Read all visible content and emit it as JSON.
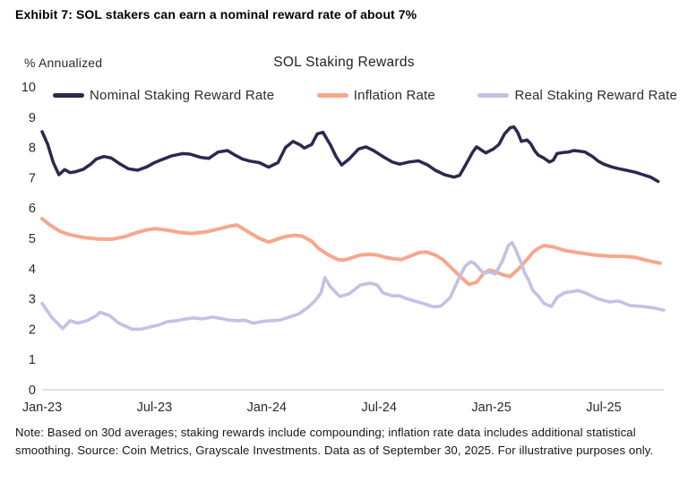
{
  "exhibit_title": "Exhibit 7: SOL stakers can earn a nominal reward rate of about 7%",
  "chart": {
    "title": "SOL Staking Rewards",
    "y_axis_unit_label": "% Annualized",
    "colors": {
      "nominal": "#2e2750",
      "inflation": "#f6a78c",
      "real": "#c5c0e5",
      "axis_line": "#d9d9d9",
      "tick_text": "#2b2b2b"
    }
  },
  "note": "Note: Based on 30d averages; staking rewards include compounding; inflation rate data includes additional statistical smoothing. Source: Coin Metrics, Grayscale Investments. Data as of September 30, 2025. For illustrative purposes only.",
  "chart_data": {
    "type": "line",
    "title": "SOL Staking Rewards",
    "xlabel": "",
    "ylabel": "% Annualized",
    "ylim": [
      0,
      10
    ],
    "grid": false,
    "legend_position": "top",
    "x_unit": "months_since_Jan_2023",
    "x_range": [
      "Jan-2023",
      "Sep-2025"
    ],
    "y_ticks": [
      0,
      1,
      2,
      3,
      4,
      5,
      6,
      7,
      8,
      9,
      10
    ],
    "x_tick_positions": [
      0,
      6,
      12,
      18,
      24,
      30
    ],
    "x_tick_labels": [
      "Jan-23",
      "Jul-23",
      "Jan-24",
      "Jul-24",
      "Jan-25",
      "Jul-25"
    ],
    "series": [
      {
        "name": "Nominal Staking Reward Rate",
        "color": "#2e2750",
        "stroke_width": 3.5,
        "points": [
          [
            0,
            8.52
          ],
          [
            0.3,
            8.1
          ],
          [
            0.6,
            7.5
          ],
          [
            0.9,
            7.1
          ],
          [
            1.2,
            7.27
          ],
          [
            1.5,
            7.17
          ],
          [
            1.8,
            7.2
          ],
          [
            2.2,
            7.28
          ],
          [
            2.6,
            7.45
          ],
          [
            2.9,
            7.62
          ],
          [
            3.3,
            7.7
          ],
          [
            3.7,
            7.65
          ],
          [
            4.1,
            7.48
          ],
          [
            4.6,
            7.3
          ],
          [
            5.1,
            7.25
          ],
          [
            5.6,
            7.36
          ],
          [
            6,
            7.5
          ],
          [
            6.4,
            7.6
          ],
          [
            6.9,
            7.72
          ],
          [
            7.5,
            7.8
          ],
          [
            7.9,
            7.78
          ],
          [
            8.5,
            7.67
          ],
          [
            8.9,
            7.64
          ],
          [
            9.4,
            7.85
          ],
          [
            9.9,
            7.9
          ],
          [
            10.3,
            7.75
          ],
          [
            10.7,
            7.62
          ],
          [
            11.1,
            7.55
          ],
          [
            11.6,
            7.5
          ],
          [
            12.1,
            7.35
          ],
          [
            12.6,
            7.5
          ],
          [
            13,
            8.0
          ],
          [
            13.4,
            8.2
          ],
          [
            13.8,
            8.08
          ],
          [
            14,
            7.98
          ],
          [
            14.4,
            8.1
          ],
          [
            14.7,
            8.45
          ],
          [
            15,
            8.5
          ],
          [
            15.4,
            8.08
          ],
          [
            15.7,
            7.7
          ],
          [
            16,
            7.42
          ],
          [
            16.4,
            7.62
          ],
          [
            16.9,
            7.95
          ],
          [
            17.3,
            8.02
          ],
          [
            17.7,
            7.9
          ],
          [
            18.2,
            7.7
          ],
          [
            18.7,
            7.52
          ],
          [
            19.1,
            7.45
          ],
          [
            19.6,
            7.52
          ],
          [
            20.1,
            7.56
          ],
          [
            20.6,
            7.42
          ],
          [
            21,
            7.25
          ],
          [
            21.5,
            7.1
          ],
          [
            22,
            7.02
          ],
          [
            22.3,
            7.08
          ],
          [
            22.6,
            7.4
          ],
          [
            23,
            7.85
          ],
          [
            23.2,
            8.02
          ],
          [
            23.4,
            7.94
          ],
          [
            23.7,
            7.82
          ],
          [
            24.1,
            7.95
          ],
          [
            24.4,
            8.1
          ],
          [
            24.7,
            8.45
          ],
          [
            25,
            8.65
          ],
          [
            25.2,
            8.68
          ],
          [
            25.4,
            8.5
          ],
          [
            25.6,
            8.2
          ],
          [
            25.9,
            8.25
          ],
          [
            26.1,
            8.12
          ],
          [
            26.3,
            7.9
          ],
          [
            26.5,
            7.75
          ],
          [
            26.8,
            7.65
          ],
          [
            27.1,
            7.52
          ],
          [
            27.3,
            7.58
          ],
          [
            27.5,
            7.8
          ],
          [
            27.8,
            7.83
          ],
          [
            28.1,
            7.85
          ],
          [
            28.4,
            7.9
          ],
          [
            28.7,
            7.88
          ],
          [
            29,
            7.85
          ],
          [
            29.4,
            7.7
          ],
          [
            29.7,
            7.55
          ],
          [
            30,
            7.45
          ],
          [
            30.4,
            7.36
          ],
          [
            30.8,
            7.3
          ],
          [
            31.2,
            7.25
          ],
          [
            31.7,
            7.18
          ],
          [
            32.1,
            7.1
          ],
          [
            32.5,
            7.02
          ],
          [
            32.9,
            6.88
          ]
        ]
      },
      {
        "name": "Inflation Rate",
        "color": "#f6a78c",
        "stroke_width": 4,
        "points": [
          [
            0,
            5.65
          ],
          [
            0.4,
            5.45
          ],
          [
            0.9,
            5.25
          ],
          [
            1.3,
            5.15
          ],
          [
            1.8,
            5.08
          ],
          [
            2.3,
            5.02
          ],
          [
            3,
            4.98
          ],
          [
            3.7,
            4.97
          ],
          [
            4.4,
            5.05
          ],
          [
            5,
            5.18
          ],
          [
            5.6,
            5.28
          ],
          [
            6,
            5.32
          ],
          [
            6.6,
            5.28
          ],
          [
            7.3,
            5.2
          ],
          [
            8,
            5.16
          ],
          [
            8.8,
            5.22
          ],
          [
            9.5,
            5.32
          ],
          [
            10,
            5.4
          ],
          [
            10.4,
            5.44
          ],
          [
            11.1,
            5.18
          ],
          [
            11.6,
            5.0
          ],
          [
            12.1,
            4.88
          ],
          [
            12.6,
            4.98
          ],
          [
            13,
            5.06
          ],
          [
            13.5,
            5.1
          ],
          [
            13.9,
            5.07
          ],
          [
            14.4,
            4.9
          ],
          [
            14.8,
            4.65
          ],
          [
            15.3,
            4.45
          ],
          [
            15.8,
            4.3
          ],
          [
            16.1,
            4.28
          ],
          [
            16.5,
            4.35
          ],
          [
            17,
            4.45
          ],
          [
            17.5,
            4.47
          ],
          [
            17.9,
            4.45
          ],
          [
            18.3,
            4.38
          ],
          [
            18.7,
            4.33
          ],
          [
            19.2,
            4.3
          ],
          [
            19.6,
            4.4
          ],
          [
            20.1,
            4.52
          ],
          [
            20.5,
            4.55
          ],
          [
            21,
            4.45
          ],
          [
            21.4,
            4.3
          ],
          [
            21.9,
            4.0
          ],
          [
            22.4,
            3.7
          ],
          [
            22.8,
            3.48
          ],
          [
            23.2,
            3.55
          ],
          [
            23.6,
            3.85
          ],
          [
            23.9,
            3.95
          ],
          [
            24.2,
            3.9
          ],
          [
            24.7,
            3.78
          ],
          [
            25,
            3.74
          ],
          [
            25.5,
            4.02
          ],
          [
            25.9,
            4.3
          ],
          [
            26.2,
            4.53
          ],
          [
            26.5,
            4.67
          ],
          [
            26.8,
            4.76
          ],
          [
            27.3,
            4.72
          ],
          [
            27.9,
            4.6
          ],
          [
            28.7,
            4.52
          ],
          [
            29.5,
            4.45
          ],
          [
            30.3,
            4.41
          ],
          [
            31.1,
            4.4
          ],
          [
            31.7,
            4.37
          ],
          [
            32.3,
            4.27
          ],
          [
            33,
            4.18
          ]
        ]
      },
      {
        "name": "Real Staking Reward Rate",
        "color": "#c5c0e5",
        "stroke_width": 3.6,
        "points": [
          [
            0,
            2.85
          ],
          [
            0.5,
            2.4
          ],
          [
            1.1,
            2.02
          ],
          [
            1.5,
            2.28
          ],
          [
            1.9,
            2.2
          ],
          [
            2.4,
            2.28
          ],
          [
            2.9,
            2.45
          ],
          [
            3.1,
            2.56
          ],
          [
            3.6,
            2.45
          ],
          [
            4.1,
            2.2
          ],
          [
            4.8,
            2.0
          ],
          [
            5.3,
            2.0
          ],
          [
            5.8,
            2.08
          ],
          [
            6.2,
            2.13
          ],
          [
            6.7,
            2.25
          ],
          [
            7.2,
            2.28
          ],
          [
            7.7,
            2.34
          ],
          [
            8.1,
            2.37
          ],
          [
            8.6,
            2.34
          ],
          [
            9.1,
            2.4
          ],
          [
            9.6,
            2.35
          ],
          [
            10,
            2.3
          ],
          [
            10.5,
            2.28
          ],
          [
            10.8,
            2.3
          ],
          [
            11.3,
            2.2
          ],
          [
            11.8,
            2.26
          ],
          [
            12.2,
            2.28
          ],
          [
            12.7,
            2.3
          ],
          [
            13.2,
            2.4
          ],
          [
            13.7,
            2.5
          ],
          [
            14.2,
            2.72
          ],
          [
            14.6,
            2.95
          ],
          [
            14.9,
            3.2
          ],
          [
            15.1,
            3.7
          ],
          [
            15.4,
            3.4
          ],
          [
            15.9,
            3.08
          ],
          [
            16.4,
            3.17
          ],
          [
            17,
            3.46
          ],
          [
            17.5,
            3.52
          ],
          [
            17.9,
            3.46
          ],
          [
            18.2,
            3.2
          ],
          [
            18.7,
            3.1
          ],
          [
            19.1,
            3.1
          ],
          [
            19.4,
            3.02
          ],
          [
            19.9,
            2.93
          ],
          [
            20.4,
            2.84
          ],
          [
            20.9,
            2.74
          ],
          [
            21.3,
            2.76
          ],
          [
            21.8,
            3.05
          ],
          [
            22.2,
            3.6
          ],
          [
            22.6,
            4.08
          ],
          [
            22.9,
            4.23
          ],
          [
            23.1,
            4.17
          ],
          [
            23.6,
            3.83
          ],
          [
            23.9,
            3.9
          ],
          [
            24.2,
            3.82
          ],
          [
            24.6,
            4.27
          ],
          [
            24.9,
            4.76
          ],
          [
            25.1,
            4.86
          ],
          [
            25.3,
            4.62
          ],
          [
            25.6,
            4.17
          ],
          [
            25.8,
            3.82
          ],
          [
            26,
            3.6
          ],
          [
            26.2,
            3.28
          ],
          [
            26.5,
            3.1
          ],
          [
            26.8,
            2.85
          ],
          [
            27.2,
            2.75
          ],
          [
            27.5,
            3.05
          ],
          [
            27.9,
            3.2
          ],
          [
            28.4,
            3.25
          ],
          [
            28.6,
            3.28
          ],
          [
            29,
            3.2
          ],
          [
            29.7,
            3.0
          ],
          [
            30.3,
            2.9
          ],
          [
            30.8,
            2.93
          ],
          [
            31.4,
            2.78
          ],
          [
            32.1,
            2.75
          ],
          [
            32.7,
            2.7
          ],
          [
            33.2,
            2.63
          ]
        ]
      }
    ]
  }
}
